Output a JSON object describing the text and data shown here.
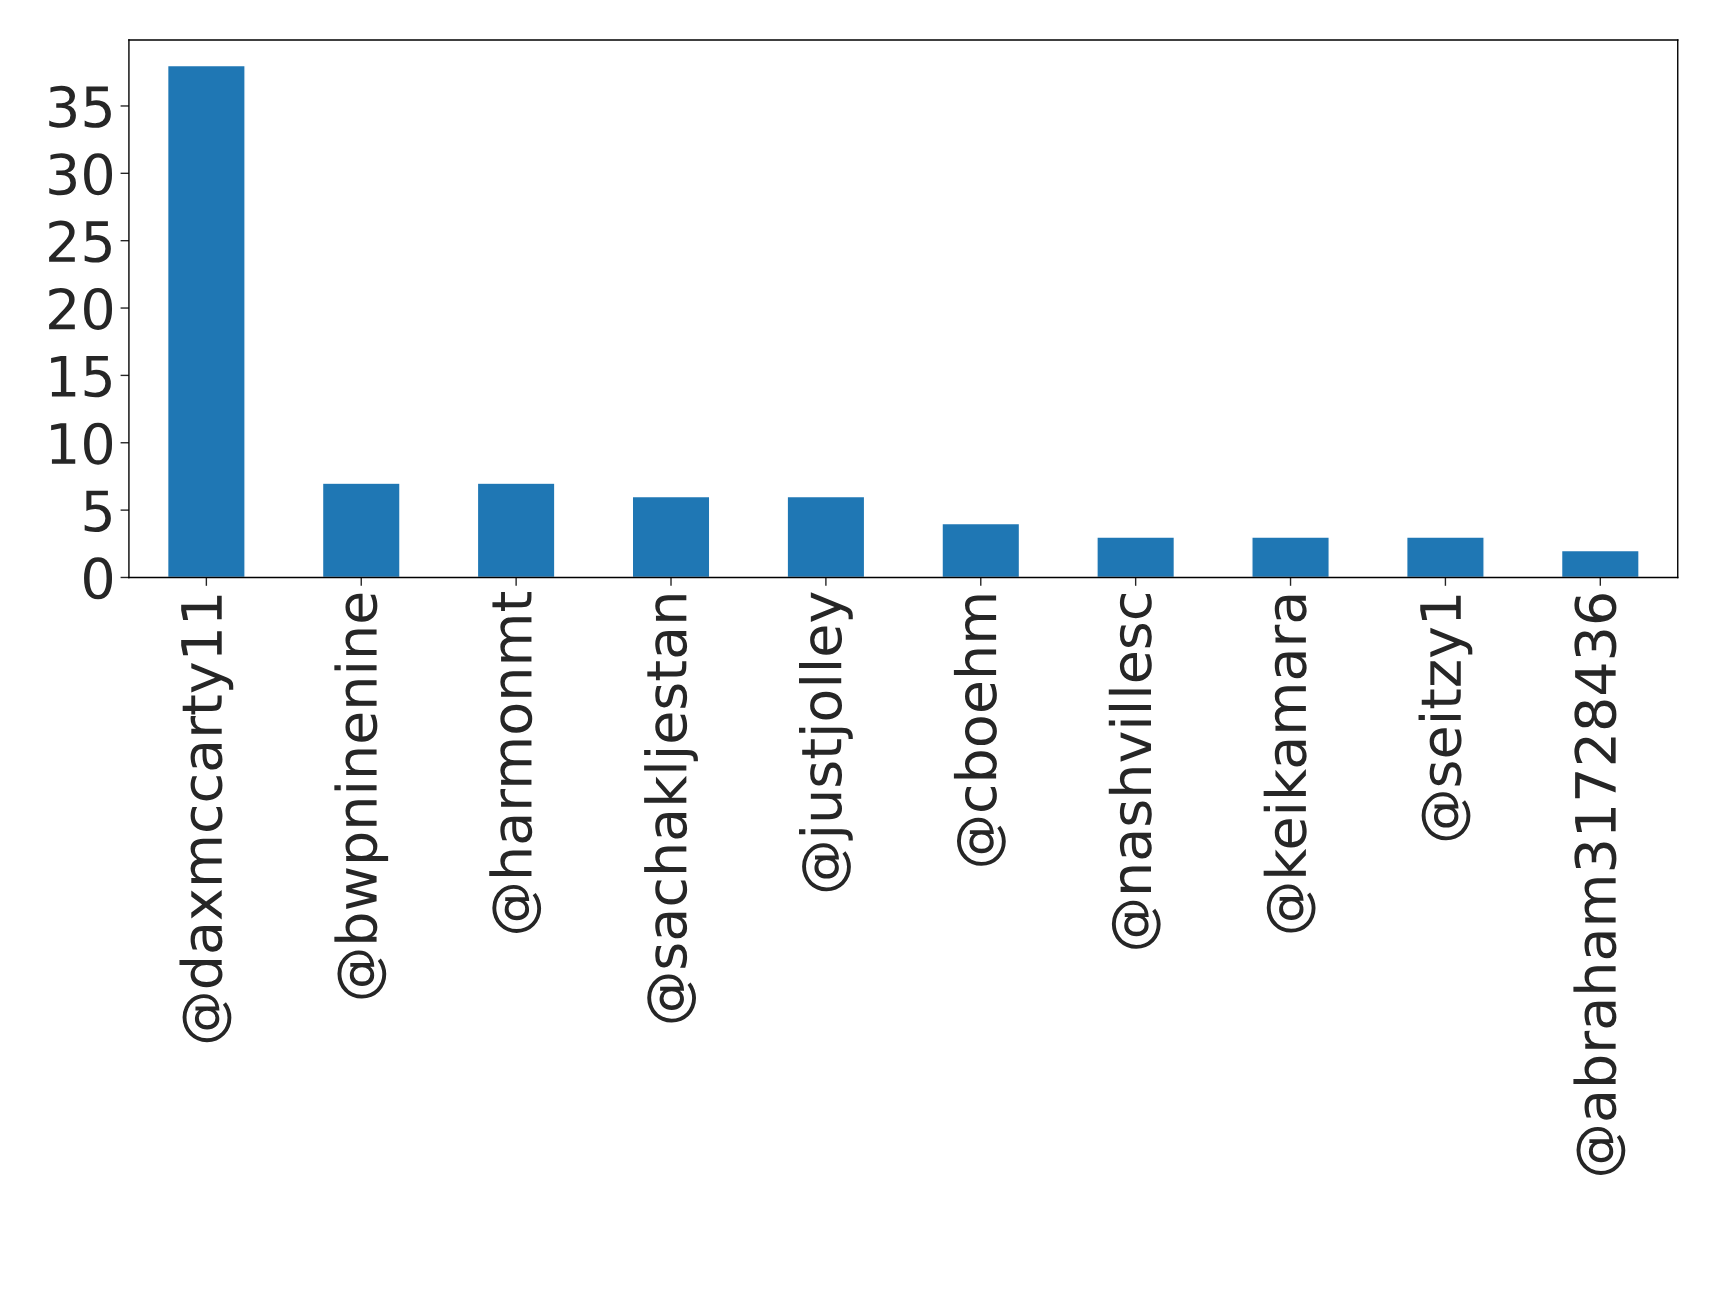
{
  "chart_data": {
    "type": "bar",
    "categories": [
      "@daxmccarty11",
      "@bwpninenine",
      "@harmonmt",
      "@sachakljestan",
      "@justjolley",
      "@cboehm",
      "@nashvillesc",
      "@keikamara",
      "@seitzy1",
      "@abraham31728436"
    ],
    "values": [
      38,
      7,
      7,
      6,
      6,
      4,
      3,
      3,
      3,
      2
    ],
    "color": "#1f77b4",
    "ylim": [
      0,
      39.9
    ],
    "yticks": [
      0,
      5,
      10,
      15,
      20,
      25,
      30,
      35
    ],
    "grid": false
  }
}
